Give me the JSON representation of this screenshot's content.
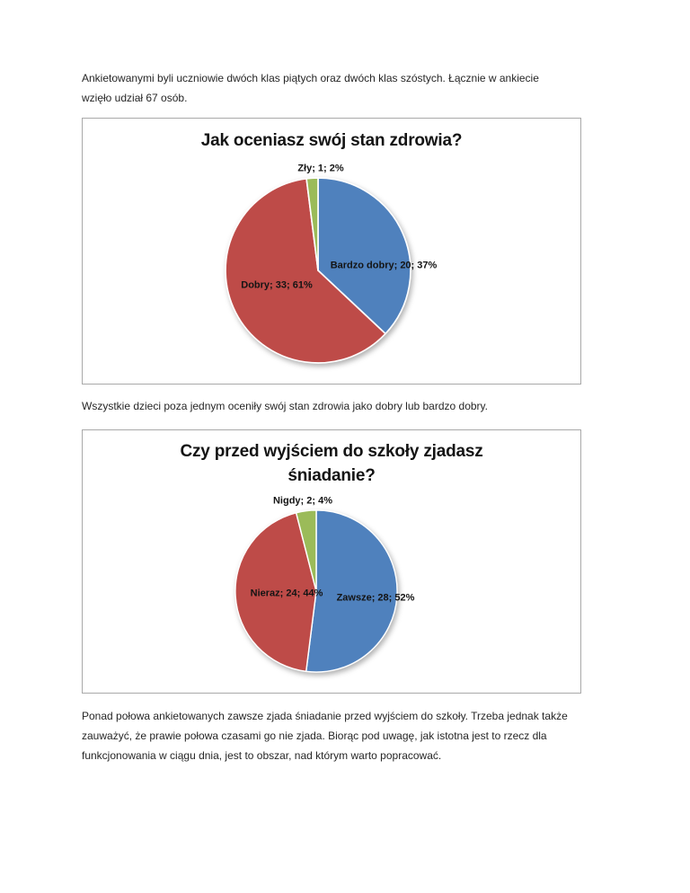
{
  "paragraphs": {
    "top": {
      "lines": [
        "Ankietowanymi byli uczniowie dwóch klas piątych oraz dwóch klas szóstych. Łącznie w ankiecie",
        "wzięło udział 67 osób."
      ]
    },
    "middle": {
      "lines": [
        "Wszystkie dzieci poza jednym oceniły swój stan zdrowia jako dobry lub bardzo dobry."
      ]
    },
    "bottom": {
      "lines": [
        "Ponad połowa ankietowanych zawsze zjada śniadanie przed wyjściem do szkoły. Trzeba jednak także",
        "zauważyć, że prawie połowa czasami go nie zjada. Biorąc pod uwagę, jak istotna jest to rzecz dla",
        "funkcjonowania w ciągu dnia, jest to obszar, nad którym warto popracować."
      ]
    }
  },
  "colors": {
    "pie_blue": "#4F81BD",
    "pie_red": "#BE4B48",
    "pie_green": "#9BBB59",
    "chart_border": "#A9A9A9",
    "text": "#262626"
  },
  "chart_data": [
    {
      "type": "pie",
      "title": "Jak oceniasz swój stan zdrowia?",
      "legend": "none",
      "start_angle": 0,
      "direction": "clockwise",
      "categories": [
        "Bardzo dobry",
        "Dobry",
        "Zły"
      ],
      "values": [
        20,
        33,
        1
      ],
      "percents": [
        37,
        61,
        2
      ],
      "slices": [
        {
          "category": "Bardzo dobry",
          "value": 20,
          "percent": 37,
          "label": "Bardzo dobry; 20; 37%",
          "color": "#4F81BD"
        },
        {
          "category": "Dobry",
          "value": 33,
          "percent": 61,
          "label": "Dobry; 33; 61%",
          "color": "#BE4B48"
        },
        {
          "category": "Zły",
          "value": 1,
          "percent": 2,
          "label": "Zły; 1; 2%",
          "color": "#9BBB59"
        }
      ]
    },
    {
      "type": "pie",
      "title": "Czy przed wyjściem do szkoły zjadasz śniadanie?",
      "legend": "none",
      "start_angle": 0,
      "direction": "clockwise",
      "categories": [
        "Zawsze",
        "Nieraz",
        "Nigdy"
      ],
      "values": [
        28,
        24,
        2
      ],
      "percents": [
        52,
        44,
        4
      ],
      "slices": [
        {
          "category": "Zawsze",
          "value": 28,
          "percent": 52,
          "label": "Zawsze; 28; 52%",
          "color": "#4F81BD"
        },
        {
          "category": "Nieraz",
          "value": 24,
          "percent": 44,
          "label": "Nieraz; 24; 44%",
          "color": "#BE4B48"
        },
        {
          "category": "Nigdy",
          "value": 2,
          "percent": 4,
          "label": "Nigdy; 2; 4%",
          "color": "#9BBB59"
        }
      ]
    }
  ]
}
